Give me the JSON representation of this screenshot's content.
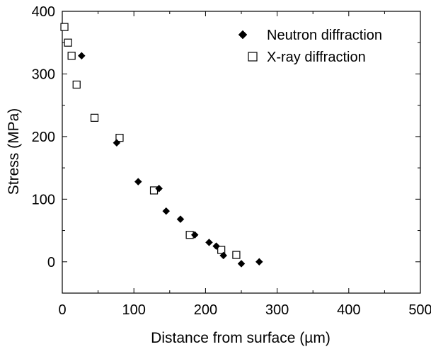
{
  "chart_data": {
    "type": "scatter",
    "xlabel": "Distance from surface (µm)",
    "ylabel": "Stress (MPa)",
    "xlim": [
      0,
      500
    ],
    "ylim": [
      -50,
      400
    ],
    "xticks": [
      0,
      100,
      200,
      300,
      400,
      500
    ],
    "yticks": [
      0,
      100,
      200,
      300,
      400
    ],
    "x_minor_step": 50,
    "y_minor_step": 50,
    "grid": false,
    "legend_position": "top-right",
    "series": [
      {
        "name": "Neutron diffraction",
        "marker": "filled-diamond",
        "color": "#000000",
        "points": [
          [
            27,
            329
          ],
          [
            76,
            190
          ],
          [
            106,
            128
          ],
          [
            135,
            117
          ],
          [
            145,
            81
          ],
          [
            165,
            68
          ],
          [
            185,
            43
          ],
          [
            205,
            31
          ],
          [
            215,
            25
          ],
          [
            225,
            10
          ],
          [
            250,
            -3
          ],
          [
            275,
            0
          ]
        ]
      },
      {
        "name": "X-ray diffraction",
        "marker": "open-square",
        "color": "#000000",
        "points": [
          [
            3,
            375
          ],
          [
            8,
            350
          ],
          [
            13,
            329
          ],
          [
            20,
            283
          ],
          [
            45,
            230
          ],
          [
            80,
            198
          ],
          [
            128,
            114
          ],
          [
            178,
            43
          ],
          [
            222,
            19
          ],
          [
            243,
            11
          ]
        ]
      }
    ]
  }
}
